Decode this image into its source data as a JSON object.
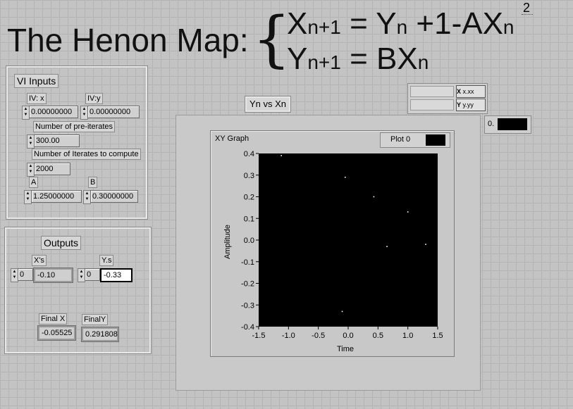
{
  "title": {
    "text": "The Henon Map:",
    "brace": "{",
    "eq1": {
      "lhs_var": "X",
      "lhs_sub": "n+1",
      "eq": "=",
      "rhs": "Y",
      "rhs_sub": "n",
      "rest": " +1-AX",
      "rest_sub": "n",
      "exp": "2"
    },
    "eq2": {
      "lhs_var": "Y",
      "lhs_sub": "n+1",
      "eq": "=",
      "rhs": "BX",
      "rhs_sub": "n"
    }
  },
  "inputs": {
    "heading": "VI Inputs",
    "iv_x_label": "IV: x",
    "iv_x_value": "0.00000000",
    "iv_y_label": "IV:y",
    "iv_y_value": "0.00000000",
    "preiter_label": "Number of pre-iterates",
    "preiter_value": "300.00",
    "iter_label": "Number of Iterates to compute",
    "iter_value": "2000",
    "a_label": "A",
    "a_value": "1.25000000",
    "b_label": "B",
    "b_value": "0.30000000"
  },
  "outputs": {
    "heading": "Outputs",
    "xs_label": "X's",
    "xs_index": "0",
    "xs_value": "-0.10",
    "ys_label": "Y.s",
    "ys_index": "0",
    "ys_value": "-0.33",
    "finalx_label": "Final X",
    "finalx_value": "-0.05525",
    "finaly_label": "FinalY",
    "finaly_value": "0.291808"
  },
  "graph": {
    "button_label": "Yn vs Xn",
    "name": "XY Graph",
    "legend": "Plot 0",
    "xlabel": "Time",
    "ylabel": "Amplitude",
    "scale_x_label": "X",
    "scale_x_fmt": "x.xx",
    "scale_y_label": "Y",
    "scale_y_fmt": "y.yy",
    "cursor_value": "0."
  },
  "chart_data": {
    "type": "scatter",
    "title": "",
    "xlabel": "Time",
    "ylabel": "Amplitude",
    "xlim": [
      -1.5,
      1.5
    ],
    "ylim": [
      -0.4,
      0.4
    ],
    "x_ticks": [
      "-1.5",
      "-1.0",
      "-0.5",
      "0.0",
      "0.5",
      "1.0",
      "1.5"
    ],
    "y_ticks": [
      "0.4",
      "0.3",
      "0.2",
      "0.1",
      "0.0",
      "-0.1",
      "-0.2",
      "-0.3",
      "-0.4"
    ],
    "series": [
      {
        "name": "Plot 0",
        "x": [
          -1.12,
          -0.05,
          0.43,
          1.0,
          0.65,
          1.3,
          -0.1
        ],
        "y": [
          0.39,
          0.29,
          0.2,
          0.13,
          -0.03,
          -0.02,
          -0.33
        ]
      }
    ]
  }
}
